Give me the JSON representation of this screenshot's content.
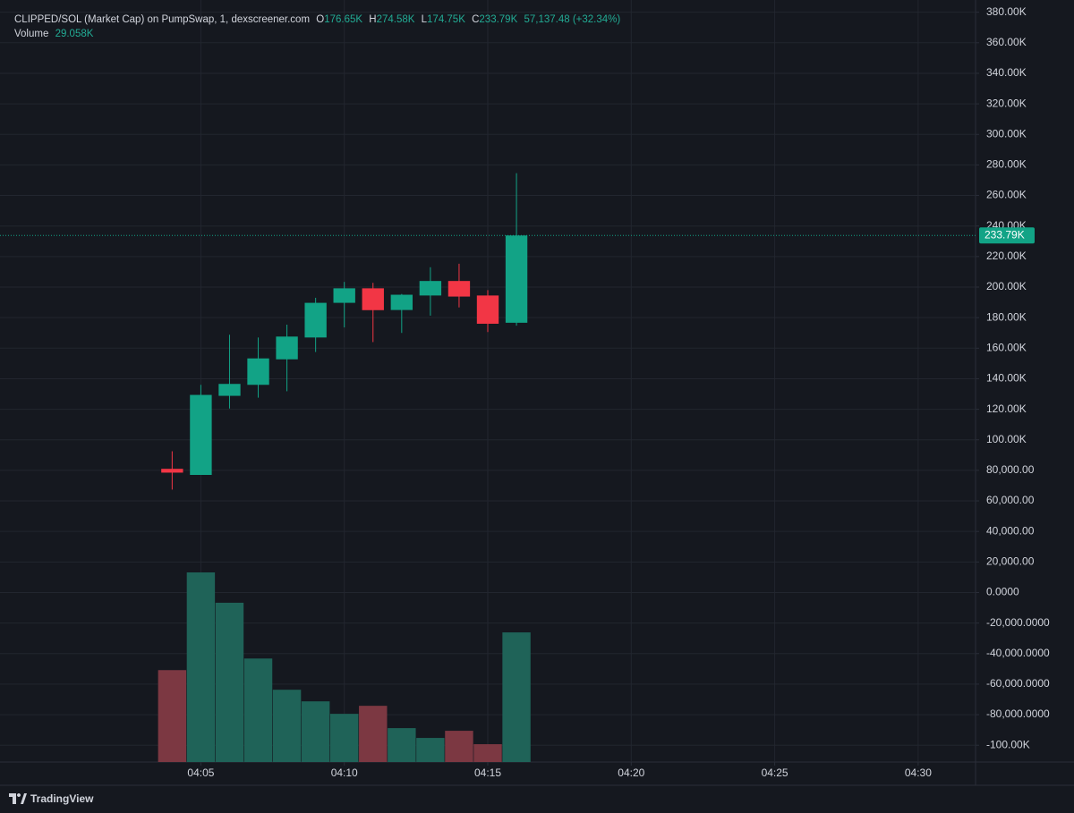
{
  "chart_data": {
    "type": "candlestick",
    "title": "CLIPPED/SOL (Market Cap) on PumpSwap, 1, dexscreener.com",
    "ohlc_letters": [
      "O",
      "H",
      "L",
      "C"
    ],
    "last_labels": [
      "176.65K",
      "274.58K",
      "174.75K",
      "233.79K"
    ],
    "change_label": "57,137.48 (+32.34%)",
    "x": [
      "04:04",
      "04:05",
      "04:06",
      "04:07",
      "04:08",
      "04:09",
      "04:10",
      "04:11",
      "04:12",
      "04:13",
      "04:14",
      "04:15",
      "04:16"
    ],
    "open": [
      81000,
      77000,
      128800,
      136000,
      152700,
      167000,
      189700,
      199200,
      185000,
      194500,
      204000,
      194500,
      176650
    ],
    "high": [
      92500,
      136000,
      168800,
      167000,
      175400,
      193000,
      203400,
      202800,
      195500,
      213000,
      215300,
      198000,
      274580
    ],
    "low": [
      67400,
      77000,
      120500,
      127600,
      131800,
      157500,
      173600,
      164000,
      170000,
      181300,
      186700,
      170600,
      174750
    ],
    "close": [
      78500,
      129400,
      136600,
      153300,
      167600,
      189700,
      199200,
      184900,
      195000,
      204000,
      193800,
      176000,
      233790
    ],
    "up_color": "#12a386",
    "down_color": "#f23645",
    "volume": {
      "name": "Volume",
      "values": [
        20600,
        42500,
        35700,
        23200,
        16200,
        13600,
        10800,
        12600,
        7600,
        5400,
        7000,
        4000,
        29058
      ],
      "value_label": "29.058K",
      "up_color": "#1f6358",
      "down_color": "#7c3842"
    },
    "xlim": [
      "03:58",
      "04:32"
    ],
    "xticks": [
      "04:05",
      "04:10",
      "04:15",
      "04:20",
      "04:25",
      "04:30"
    ],
    "ylim": [
      -111000,
      388000
    ],
    "yticks": [
      {
        "value": 380000,
        "label": "380.00K"
      },
      {
        "value": 360000,
        "label": "360.00K"
      },
      {
        "value": 340000,
        "label": "340.00K"
      },
      {
        "value": 320000,
        "label": "320.00K"
      },
      {
        "value": 300000,
        "label": "300.00K"
      },
      {
        "value": 280000,
        "label": "280.00K"
      },
      {
        "value": 260000,
        "label": "260.00K"
      },
      {
        "value": 240000,
        "label": "240.00K"
      },
      {
        "value": 220000,
        "label": "220.00K"
      },
      {
        "value": 200000,
        "label": "200.00K"
      },
      {
        "value": 180000,
        "label": "180.00K"
      },
      {
        "value": 160000,
        "label": "160.00K"
      },
      {
        "value": 140000,
        "label": "140.00K"
      },
      {
        "value": 120000,
        "label": "120.00K"
      },
      {
        "value": 100000,
        "label": "100.00K"
      },
      {
        "value": 80000,
        "label": "80,000.00"
      },
      {
        "value": 60000,
        "label": "60,000.00"
      },
      {
        "value": 40000,
        "label": "40,000.00"
      },
      {
        "value": 20000,
        "label": "20,000.00"
      },
      {
        "value": 0,
        "label": "0.0000"
      },
      {
        "value": -20000,
        "label": "-20,000.0000"
      },
      {
        "value": -40000,
        "label": "-40,000.0000"
      },
      {
        "value": -60000,
        "label": "-60,000.0000"
      },
      {
        "value": -80000,
        "label": "-80,000.0000"
      },
      {
        "value": -100000,
        "label": "-100.00K"
      }
    ],
    "grid": true,
    "brand": "TradingView"
  }
}
